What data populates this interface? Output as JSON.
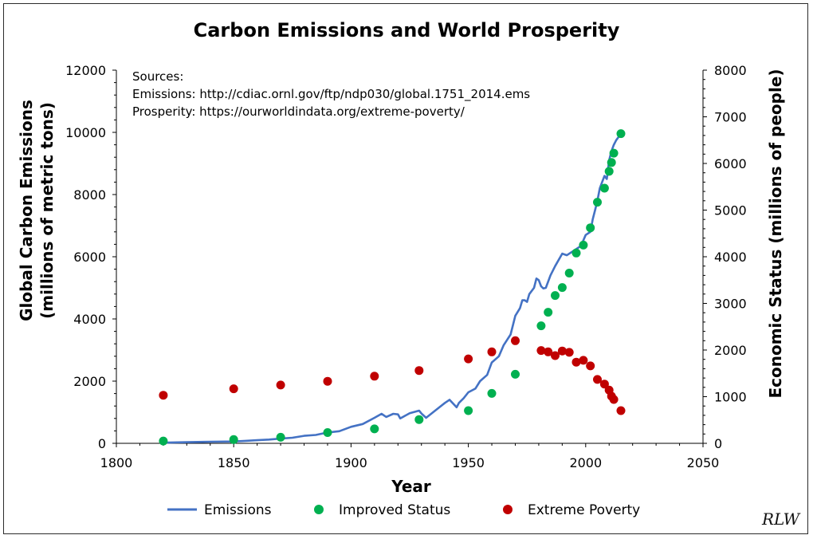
{
  "chart_data": {
    "type": "line+scatter",
    "title": "Carbon Emissions and World Prosperity",
    "xlabel": "Year",
    "ylabel_left": [
      "Global Carbon Emissions",
      "(millions of metric tons)"
    ],
    "ylabel_right": "Economic Status (millions of people)",
    "xlim": [
      1800,
      2050
    ],
    "ylim_left": [
      0,
      12000
    ],
    "ylim_right": [
      0,
      8000
    ],
    "x_ticks": [
      1800,
      1850,
      1900,
      1950,
      2000,
      2050
    ],
    "y_ticks_left": [
      0,
      2000,
      4000,
      6000,
      8000,
      10000,
      12000
    ],
    "y_ticks_right": [
      0,
      1000,
      2000,
      3000,
      4000,
      5000,
      6000,
      7000,
      8000
    ],
    "annotation": [
      "Sources:",
      "Emissions: http://cdiac.ornl.gov/ftp/ndp030/global.1751_2014.ems",
      "Prosperity: https://ourworldindata.org/extreme-poverty/"
    ],
    "legend": [
      "Emissions",
      "Improved Status",
      "Extreme Poverty"
    ],
    "colors": {
      "emissions": "#4472c4",
      "improved": "#00b050",
      "poverty": "#c00000"
    },
    "series": [
      {
        "name": "Emissions",
        "axis": "left",
        "kind": "line",
        "x": [
          1820,
          1830,
          1840,
          1850,
          1855,
          1860,
          1865,
          1870,
          1875,
          1880,
          1885,
          1890,
          1895,
          1900,
          1905,
          1910,
          1913,
          1915,
          1918,
          1920,
          1921,
          1925,
          1929,
          1930,
          1932,
          1935,
          1940,
          1942,
          1945,
          1946,
          1948,
          1950,
          1953,
          1955,
          1958,
          1960,
          1963,
          1965,
          1968,
          1970,
          1972,
          1973,
          1974,
          1975,
          1976,
          1978,
          1979,
          1980,
          1981,
          1982,
          1983,
          1985,
          1987,
          1990,
          1992,
          1994,
          1996,
          1998,
          2000,
          2002,
          2003,
          2004,
          2005,
          2006,
          2007,
          2008,
          2009,
          2010,
          2011,
          2012,
          2013,
          2014
        ],
        "y": [
          20,
          35,
          50,
          60,
          80,
          100,
          120,
          150,
          180,
          240,
          270,
          350,
          390,
          530,
          620,
          820,
          950,
          850,
          950,
          930,
          800,
          970,
          1050,
          960,
          820,
          1000,
          1300,
          1400,
          1160,
          1300,
          1450,
          1640,
          1760,
          2000,
          2200,
          2600,
          2800,
          3150,
          3500,
          4100,
          4350,
          4600,
          4600,
          4550,
          4800,
          5000,
          5300,
          5250,
          5050,
          4980,
          5000,
          5400,
          5700,
          6100,
          6050,
          6150,
          6250,
          6350,
          6700,
          6800,
          7200,
          7500,
          7800,
          8200,
          8400,
          8600,
          8500,
          9100,
          9400,
          9600,
          9750,
          9850
        ]
      },
      {
        "name": "Improved Status",
        "axis": "right",
        "kind": "scatter",
        "x": [
          1820,
          1850,
          1870,
          1890,
          1910,
          1929,
          1950,
          1960,
          1970,
          1981,
          1984,
          1987,
          1990,
          1993,
          1996,
          1999,
          2002,
          2005,
          2008,
          2010,
          2011,
          2012,
          2015
        ],
        "y": [
          50,
          80,
          130,
          230,
          310,
          510,
          700,
          1070,
          1480,
          2520,
          2810,
          3170,
          3340,
          3650,
          4080,
          4250,
          4620,
          5170,
          5470,
          5830,
          6020,
          6220,
          6640
        ]
      },
      {
        "name": "Extreme Poverty",
        "axis": "right",
        "kind": "scatter",
        "x": [
          1820,
          1850,
          1870,
          1890,
          1910,
          1929,
          1950,
          1960,
          1970,
          1981,
          1984,
          1987,
          1990,
          1993,
          1996,
          1999,
          2002,
          2005,
          2008,
          2010,
          2011,
          2012,
          2015
        ],
        "y": [
          1030,
          1170,
          1250,
          1330,
          1440,
          1560,
          1810,
          1960,
          2200,
          1990,
          1960,
          1880,
          1980,
          1950,
          1740,
          1780,
          1660,
          1370,
          1270,
          1140,
          1010,
          940,
          700
        ]
      }
    ]
  },
  "signature": "RLW"
}
